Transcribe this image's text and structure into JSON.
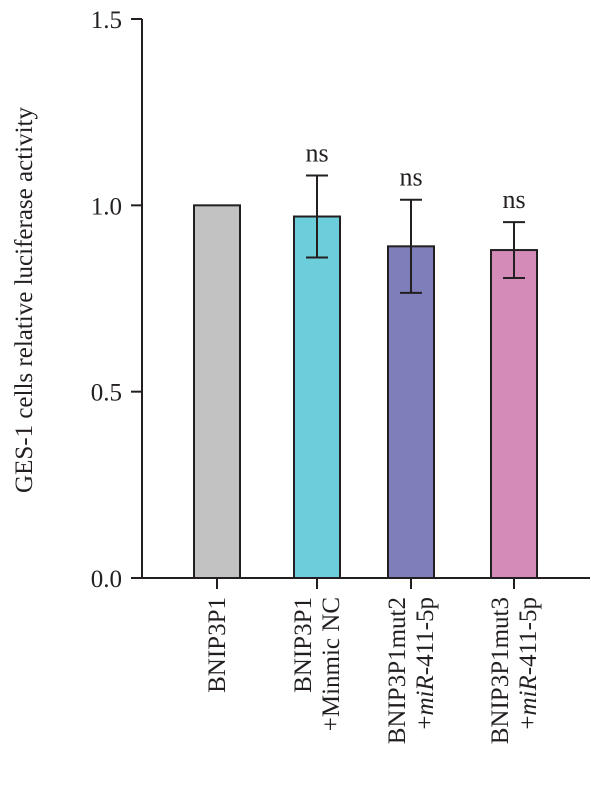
{
  "chart_data": {
    "type": "bar",
    "title": "",
    "xlabel": "",
    "ylabel": "GES-1 cells relative luciferase activity",
    "ylim": [
      0,
      1.5
    ],
    "yticks": [
      "0.0",
      "0.5",
      "1.0",
      "1.5"
    ],
    "categories": [
      {
        "line1": "BNIP3P1",
        "line2_prefix": "",
        "line2_italic": "",
        "line2_suffix": ""
      },
      {
        "line1": "BNIP3P1",
        "line2_prefix": "+Minmic NC",
        "line2_italic": "",
        "line2_suffix": ""
      },
      {
        "line1": "BNIP3P1mut2",
        "line2_prefix": "+",
        "line2_italic": "miR",
        "line2_suffix": "-411-5p"
      },
      {
        "line1": "BNIP3P1mut3",
        "line2_prefix": "+",
        "line2_italic": "miR",
        "line2_suffix": "-411-5p"
      }
    ],
    "values": [
      1.0,
      0.97,
      0.89,
      0.88
    ],
    "errors": [
      null,
      0.11,
      0.125,
      0.075
    ],
    "significance": [
      "",
      "ns",
      "ns",
      "ns"
    ],
    "colors": [
      "#c2c2c2",
      "#6ccedb",
      "#7e7fba",
      "#d58bb8"
    ],
    "grid": false,
    "legend": "none"
  }
}
